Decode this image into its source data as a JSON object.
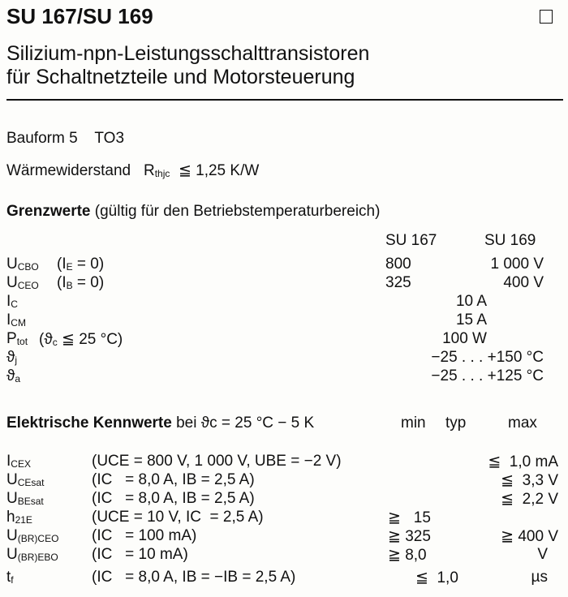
{
  "title": "SU 167/SU 169",
  "subtitle1": "Silizium-npn-Leistungsschalttransistoren",
  "subtitle2": "für Schaltnetzteile und Motorsteuerung",
  "bauform": "Bauform 5    TO3",
  "waerme": {
    "label": "Wärmewiderstand",
    "sym": "R",
    "sub": "thjc",
    "val": "≦ 1,25 K/W"
  },
  "grenz": {
    "heading": "Grenzwerte",
    "note": "(gültig für den Betriebstemperaturbereich)",
    "col1": "SU 167",
    "col2": "SU 169",
    "rows": [
      {
        "sym": "U",
        "sub": "CBO",
        "cond": "(I",
        "csub": "E",
        "crest": " = 0)",
        "v1": "800",
        "v2": "1 000 V"
      },
      {
        "sym": "U",
        "sub": "CEO",
        "cond": "(I",
        "csub": "B",
        "crest": " = 0)",
        "v1": "325",
        "v2": "400 V"
      },
      {
        "sym": "I",
        "sub": "C",
        "cond": "",
        "csub": "",
        "crest": "",
        "v1": "",
        "v2": "",
        "vc": "10 A"
      },
      {
        "sym": "I",
        "sub": "CM",
        "cond": "",
        "csub": "",
        "crest": "",
        "v1": "",
        "v2": "",
        "vc": "15 A"
      },
      {
        "sym": "P",
        "sub": "tot",
        "cond": "(ϑ",
        "csub": "c",
        "crest": " ≦ 25 °C)",
        "v1": "",
        "v2": "",
        "vc": "100 W"
      },
      {
        "sym": "ϑ",
        "sub": "j",
        "cond": "",
        "csub": "",
        "crest": "",
        "v1": "",
        "v2": "",
        "vc": "−25 . . . +150 °C"
      },
      {
        "sym": "ϑ",
        "sub": "a",
        "cond": "",
        "csub": "",
        "crest": "",
        "v1": "",
        "v2": "",
        "vc": "−25 . . . +125 °C"
      }
    ]
  },
  "elek": {
    "heading1": "Elektrische",
    "heading2": "Kennwerte",
    "cond": "bei ϑc = 25 °C − 5 K",
    "min": "min",
    "typ": "typ",
    "max": "max",
    "rows": [
      {
        "sym": "I",
        "sub": "CEX",
        "cond": "(UCE = 800 V, 1 000 V, UBE = −2 V)",
        "min": "",
        "typ": "",
        "max": "≦  1,0 mA"
      },
      {
        "sym": "U",
        "sub": "CEsat",
        "cond": "(IC   = 8,0 A, IB = 2,5 A)",
        "min": "",
        "typ": "",
        "max": "≦  3,3 V"
      },
      {
        "sym": "U",
        "sub": "BEsat",
        "cond": "(IC   = 8,0 A, IB = 2,5 A)",
        "min": "",
        "typ": "",
        "max": "≦  2,2 V"
      },
      {
        "sym": "h",
        "sub": "21E",
        "cond": "(UCE = 10 V, IC  = 2,5 A)",
        "min": "≧   15",
        "typ": "",
        "max": ""
      },
      {
        "sym": "U",
        "sub": "(BR)CEO",
        "cond": "(IC   = 100 mA)",
        "min": "≧ 325",
        "typ": "",
        "max": "≧ 400 V"
      },
      {
        "sym": "U",
        "sub": "(BR)EBO",
        "cond": "(IC   = 10 mA)",
        "min": "≧ 8,0",
        "typ": "",
        "max": "V"
      },
      {
        "sym": "t",
        "sub": "f",
        "cond": "(IC   = 8,0 A, IB = −IB = 2,5 A)",
        "min": "",
        "typ": "≦  1,0",
        "max": "µs"
      }
    ]
  }
}
